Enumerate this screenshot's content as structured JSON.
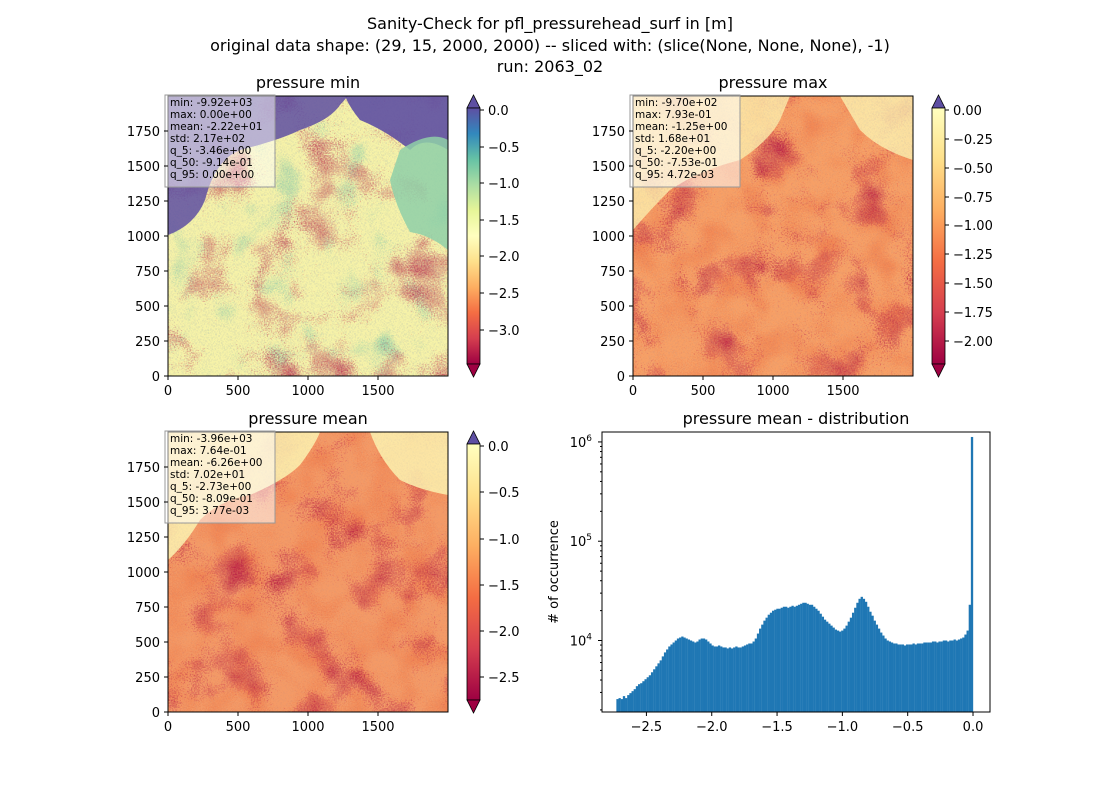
{
  "figure": {
    "suptitle_lines": [
      "Sanity-Check for pfl_pressurehead_surf in [m]",
      "original data shape: (29, 15, 2000, 2000) -- sliced with: (slice(None, None, None), -1)",
      "run: 2063_02"
    ]
  },
  "chart_data": [
    {
      "type": "heatmap",
      "title": "pressure min",
      "x_ticks": [
        "0",
        "500",
        "1000",
        "1500"
      ],
      "y_ticks": [
        "0",
        "250",
        "500",
        "750",
        "1000",
        "1250",
        "1500",
        "1750"
      ],
      "xlim": [
        0,
        2000
      ],
      "ylim": [
        0,
        2000
      ],
      "colorbar": {
        "ticks": [
          "0.0",
          "−0.5",
          "−1.0",
          "−1.5",
          "−2.0",
          "−2.5",
          "−3.0"
        ],
        "range": [
          -3.4,
          0.0
        ],
        "extend_top_color": "#5e4fa2",
        "extend_bottom_color": "#9e0142"
      },
      "stats": [
        "min: -9.92e+03",
        "max: 0.00e+00",
        "mean: -2.22e+01",
        "std: 2.17e+02",
        "q_5: -3.46e+00",
        "q_50: -9.14e-01",
        "q_95: 0.00e+00"
      ],
      "colormap": "Spectral"
    },
    {
      "type": "heatmap",
      "title": "pressure max",
      "x_ticks": [
        "0",
        "500",
        "1000",
        "1500"
      ],
      "y_ticks": [
        "0",
        "250",
        "500",
        "750",
        "1000",
        "1250",
        "1500",
        "1750"
      ],
      "xlim": [
        0,
        2000
      ],
      "ylim": [
        0,
        2000
      ],
      "colorbar": {
        "ticks": [
          "0.00",
          "−0.25",
          "−0.50",
          "−0.75",
          "−1.00",
          "−1.25",
          "−1.50",
          "−1.75",
          "−2.00"
        ],
        "range": [
          -2.2,
          0.0
        ],
        "extend_top_color": "#5e4fa2",
        "extend_bottom_color": "#9e0142"
      },
      "stats": [
        "min: -9.70e+02",
        "max: 7.93e-01",
        "mean: -1.25e+00",
        "std: 1.68e+01",
        "q_5: -2.20e+00",
        "q_50: -7.53e-01",
        "q_95: 4.72e-03"
      ],
      "colormap": "Spectral"
    },
    {
      "type": "heatmap",
      "title": "pressure mean",
      "x_ticks": [
        "0",
        "500",
        "1000",
        "1500"
      ],
      "y_ticks": [
        "0",
        "250",
        "500",
        "750",
        "1000",
        "1250",
        "1500",
        "1750"
      ],
      "xlim": [
        0,
        2000
      ],
      "ylim": [
        0,
        2000
      ],
      "colorbar": {
        "ticks": [
          "0.0",
          "−0.5",
          "−1.0",
          "−1.5",
          "−2.0",
          "−2.5"
        ],
        "range": [
          -2.73,
          0.0
        ],
        "extend_top_color": "#5e4fa2",
        "extend_bottom_color": "#9e0142"
      },
      "stats": [
        "min: -3.96e+03",
        "max: 7.64e-01",
        "mean: -6.26e+00",
        "std: 7.02e+01",
        "q_5: -2.73e+00",
        "q_50: -8.09e-01",
        "q_95: 3.77e-03"
      ],
      "colormap": "Spectral"
    },
    {
      "type": "bar",
      "title": "pressure mean - distribution",
      "ylabel": "# of occurrence",
      "x_ticks": [
        "−2.5",
        "−2.0",
        "−1.5",
        "−1.0",
        "−0.5",
        "0.0"
      ],
      "y_ticks": [
        {
          "base": "10",
          "exp": "4"
        },
        {
          "base": "10",
          "exp": "5"
        },
        {
          "base": "10",
          "exp": "6"
        }
      ],
      "xlim": [
        -2.84,
        0.13
      ],
      "ylim_log10": [
        3.28,
        6.1
      ],
      "yscale": "log",
      "bar_color": "#1f77b4",
      "bin_range": [
        -2.73,
        0.0
      ],
      "hist_log10_counts": [
        3.41,
        3.42,
        3.41,
        3.44,
        3.42,
        3.45,
        3.47,
        3.49,
        3.51,
        3.54,
        3.56,
        3.57,
        3.59,
        3.61,
        3.63,
        3.65,
        3.68,
        3.71,
        3.74,
        3.77,
        3.8,
        3.84,
        3.88,
        3.91,
        3.94,
        3.96,
        3.98,
        4.0,
        4.02,
        4.03,
        4.04,
        4.03,
        4.02,
        4.01,
        4.0,
        3.99,
        3.98,
        3.99,
        4.01,
        4.02,
        4.02,
        4.01,
        3.99,
        3.97,
        3.95,
        3.94,
        3.94,
        3.95,
        3.94,
        3.93,
        3.93,
        3.92,
        3.93,
        3.92,
        3.93,
        3.94,
        3.93,
        3.93,
        3.94,
        3.95,
        3.96,
        3.97,
        3.97,
        3.99,
        4.02,
        4.07,
        4.12,
        4.16,
        4.2,
        4.23,
        4.26,
        4.28,
        4.3,
        4.31,
        4.32,
        4.32,
        4.33,
        4.34,
        4.34,
        4.33,
        4.34,
        4.35,
        4.34,
        4.35,
        4.36,
        4.37,
        4.38,
        4.38,
        4.37,
        4.36,
        4.36,
        4.34,
        4.32,
        4.3,
        4.27,
        4.24,
        4.21,
        4.19,
        4.17,
        4.15,
        4.13,
        4.11,
        4.1,
        4.09,
        4.1,
        4.12,
        4.15,
        4.19,
        4.23,
        4.28,
        4.33,
        4.38,
        4.42,
        4.44,
        4.42,
        4.39,
        4.34,
        4.29,
        4.25,
        4.2,
        4.16,
        4.12,
        4.08,
        4.05,
        4.02,
        4.0,
        3.99,
        3.98,
        3.97,
        3.97,
        3.96,
        3.96,
        3.96,
        3.95,
        3.96,
        3.96,
        3.96,
        3.97,
        3.96,
        3.97,
        3.97,
        3.97,
        3.98,
        3.98,
        3.98,
        3.98,
        3.99,
        3.99,
        3.98,
        3.99,
        3.99,
        4.0,
        4.0,
        3.99,
        4.0,
        4.0,
        4.01,
        4.0,
        4.01,
        4.02,
        4.03,
        4.06,
        4.1,
        4.36,
        6.05
      ]
    }
  ]
}
